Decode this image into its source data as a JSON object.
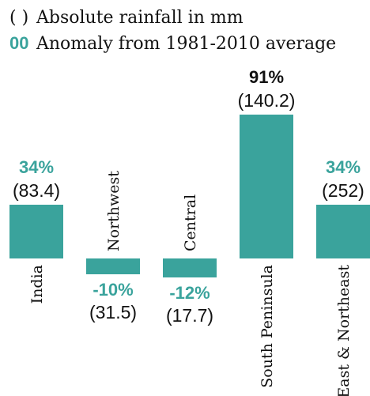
{
  "chart_data": {
    "type": "bar",
    "legend": [
      {
        "symbol": "( )",
        "text": "Absolute rainfall in mm"
      },
      {
        "symbol": "00",
        "text": "Anomaly from 1981-2010  average"
      }
    ],
    "categories": [
      "India",
      "Northwest",
      "Central",
      "South Peninsula",
      "East & Northeast"
    ],
    "values": [
      34,
      -10,
      -12,
      91,
      34
    ],
    "value_labels": [
      "34%",
      "-10%",
      "-12%",
      "91%",
      "34%"
    ],
    "rainfall": [
      83.4,
      31.5,
      17.7,
      140.2,
      252
    ],
    "rainfall_labels": [
      "(83.4)",
      "(31.5)",
      "(17.7)",
      "(140.2)",
      "(252)"
    ],
    "color": "#3aa39c",
    "label_colors": [
      "#3aa39c",
      "#3aa39c",
      "#3aa39c",
      "#111111",
      "#3aa39c"
    ]
  }
}
